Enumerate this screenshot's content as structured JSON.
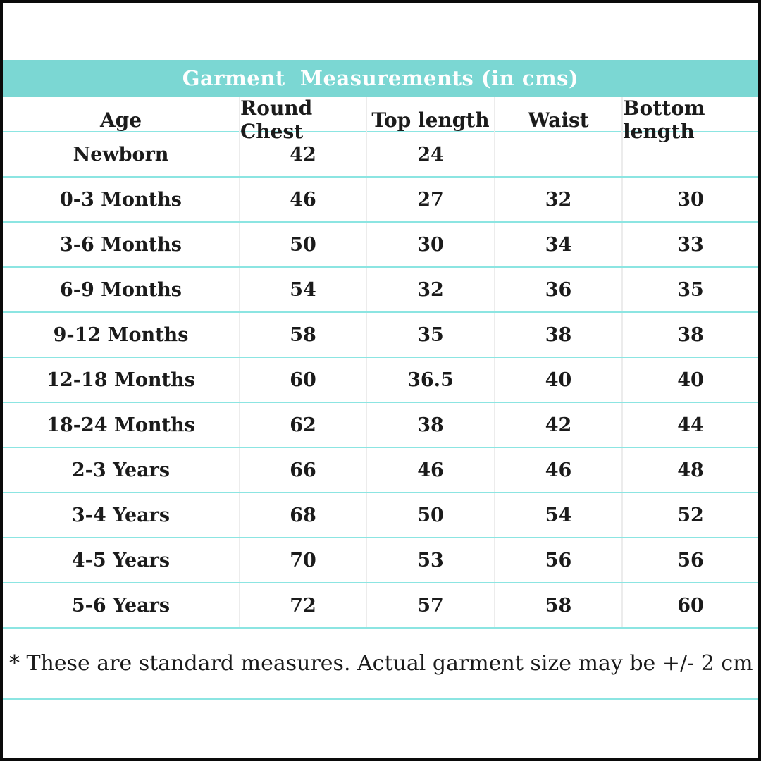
{
  "title": "Garment  Measurements (in cms)",
  "colors": {
    "band": "#7bd7d3",
    "row_line": "#8ce5e2",
    "col_line": "#ececec",
    "border": "#0a0a0a",
    "title_text": "#ffffff",
    "table_text": "#1b1b1b"
  },
  "footnote": "* These are standard measures. Actual garment size may be +/- 2 cm",
  "chart_data": {
    "type": "table",
    "title": "Garment  Measurements (in cms)",
    "columns": [
      "Age",
      "Round Chest",
      "Top length",
      "Waist",
      "Bottom length"
    ],
    "rows": [
      [
        "Newborn",
        "42",
        "24",
        "",
        ""
      ],
      [
        "0-3 Months",
        "46",
        "27",
        "32",
        "30"
      ],
      [
        "3-6 Months",
        "50",
        "30",
        "34",
        "33"
      ],
      [
        "6-9 Months",
        "54",
        "32",
        "36",
        "35"
      ],
      [
        "9-12 Months",
        "58",
        "35",
        "38",
        "38"
      ],
      [
        "12-18 Months",
        "60",
        "36.5",
        "40",
        "40"
      ],
      [
        "18-24 Months",
        "62",
        "38",
        "42",
        "44"
      ],
      [
        "2-3 Years",
        "66",
        "46",
        "46",
        "48"
      ],
      [
        "3-4 Years",
        "68",
        "50",
        "54",
        "52"
      ],
      [
        "4-5 Years",
        "70",
        "53",
        "56",
        "56"
      ],
      [
        "5-6 Years",
        "72",
        "57",
        "58",
        "60"
      ]
    ],
    "footnote": "* These are standard measures. Actual garment size may be +/- 2 cm"
  }
}
